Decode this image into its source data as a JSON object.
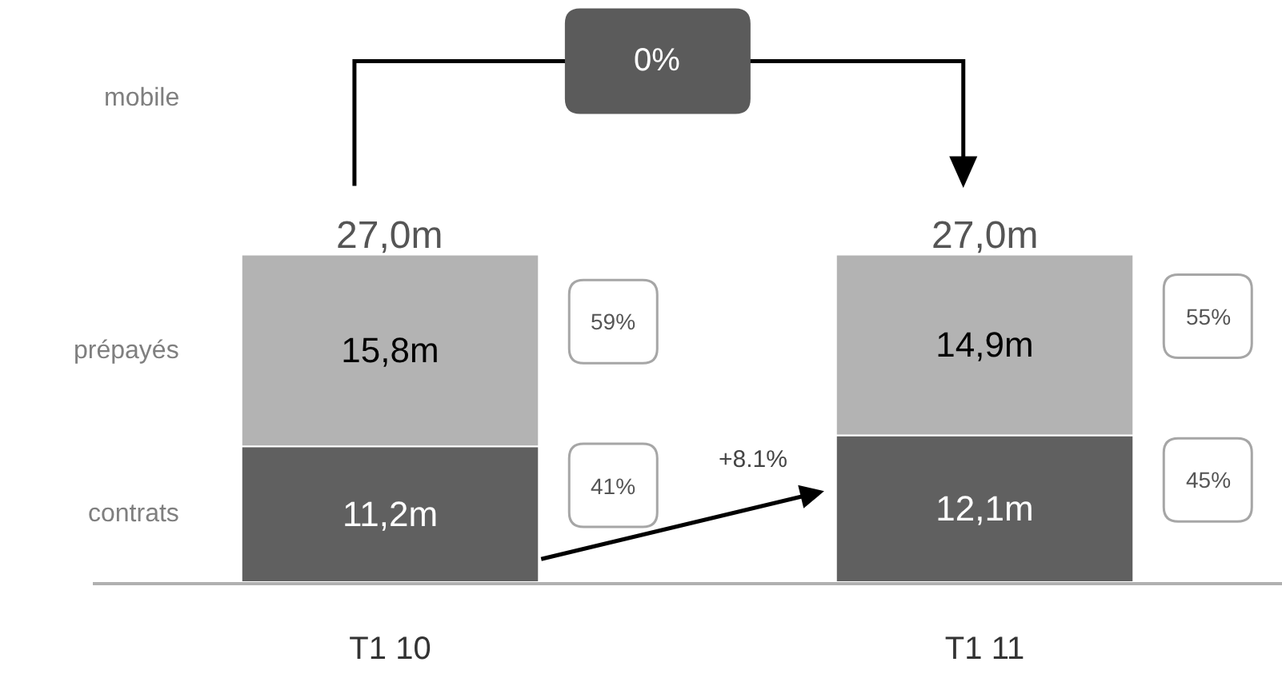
{
  "chart_data": {
    "type": "bar",
    "stacked": true,
    "categories": [
      "T1 10",
      "T1 11"
    ],
    "series": [
      {
        "name": "contrats",
        "color": "#606060",
        "values": [
          11.2,
          12.1
        ],
        "value_labels": [
          "11,2m",
          "12,1m"
        ]
      },
      {
        "name": "prépayés",
        "color": "#b3b3b3",
        "values": [
          15.8,
          14.9
        ],
        "value_labels": [
          "15,8m",
          "14,9m"
        ]
      }
    ],
    "totals": [
      "27,0m",
      "27,0m"
    ],
    "ylim": [
      0,
      48
    ],
    "tick_labels": "x",
    "annotations": [
      "mobile",
      "0%",
      "+8.1%",
      "59%",
      "41%",
      "55%",
      "45%"
    ]
  }
}
